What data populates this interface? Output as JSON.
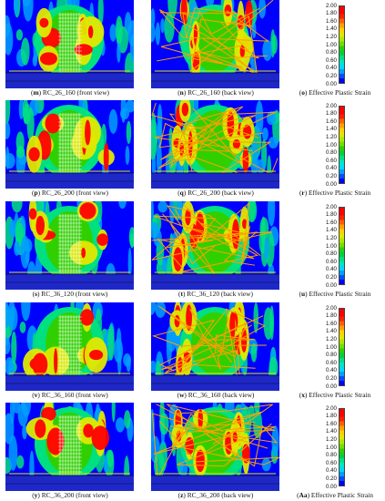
{
  "legend": {
    "ticks": [
      "2.00",
      "1.80",
      "1.60",
      "1.40",
      "1.20",
      "1.00",
      "0.80",
      "0.60",
      "0.40",
      "0.20",
      "0.00"
    ],
    "colors": [
      "#0000ff",
      "#00a0ff",
      "#00e080",
      "#30d000",
      "#e0e800",
      "#ffa000",
      "#ff0000"
    ]
  },
  "rows": [
    {
      "front": {
        "letter": "m",
        "text": " RC_26_160 (front view)"
      },
      "back": {
        "letter": "n",
        "text": " RC_26_160 (back view)"
      },
      "legend_caption": {
        "letter": "o",
        "text": " Effective Plastic Strain"
      }
    },
    {
      "front": {
        "letter": "p",
        "text": " RC_26_200 (front view)"
      },
      "back": {
        "letter": "q",
        "text": " RC_26_200 (back view)"
      },
      "legend_caption": {
        "letter": "r",
        "text": " Effective Plastic Strain"
      }
    },
    {
      "front": {
        "letter": "s",
        "text": " RC_36_120 (front view)"
      },
      "back": {
        "letter": "t",
        "text": " RC_36_120 (back view)"
      },
      "legend_caption": {
        "letter": "u",
        "text": " Effective Plastic Strain"
      }
    },
    {
      "front": {
        "letter": "v",
        "text": " RC_36_160 (front view)"
      },
      "back": {
        "letter": "w",
        "text": " RC_36_160 (back view)"
      },
      "legend_caption": {
        "letter": "x",
        "text": " Effective Plastic Strain"
      }
    },
    {
      "front": {
        "letter": "y",
        "text": " RC_36_200 (front view)"
      },
      "back": {
        "letter": "z",
        "text": " RC_36_200 (back view)"
      },
      "legend_caption": {
        "letter": "Aa",
        "text": " Effective Plastic Strain"
      }
    }
  ]
}
